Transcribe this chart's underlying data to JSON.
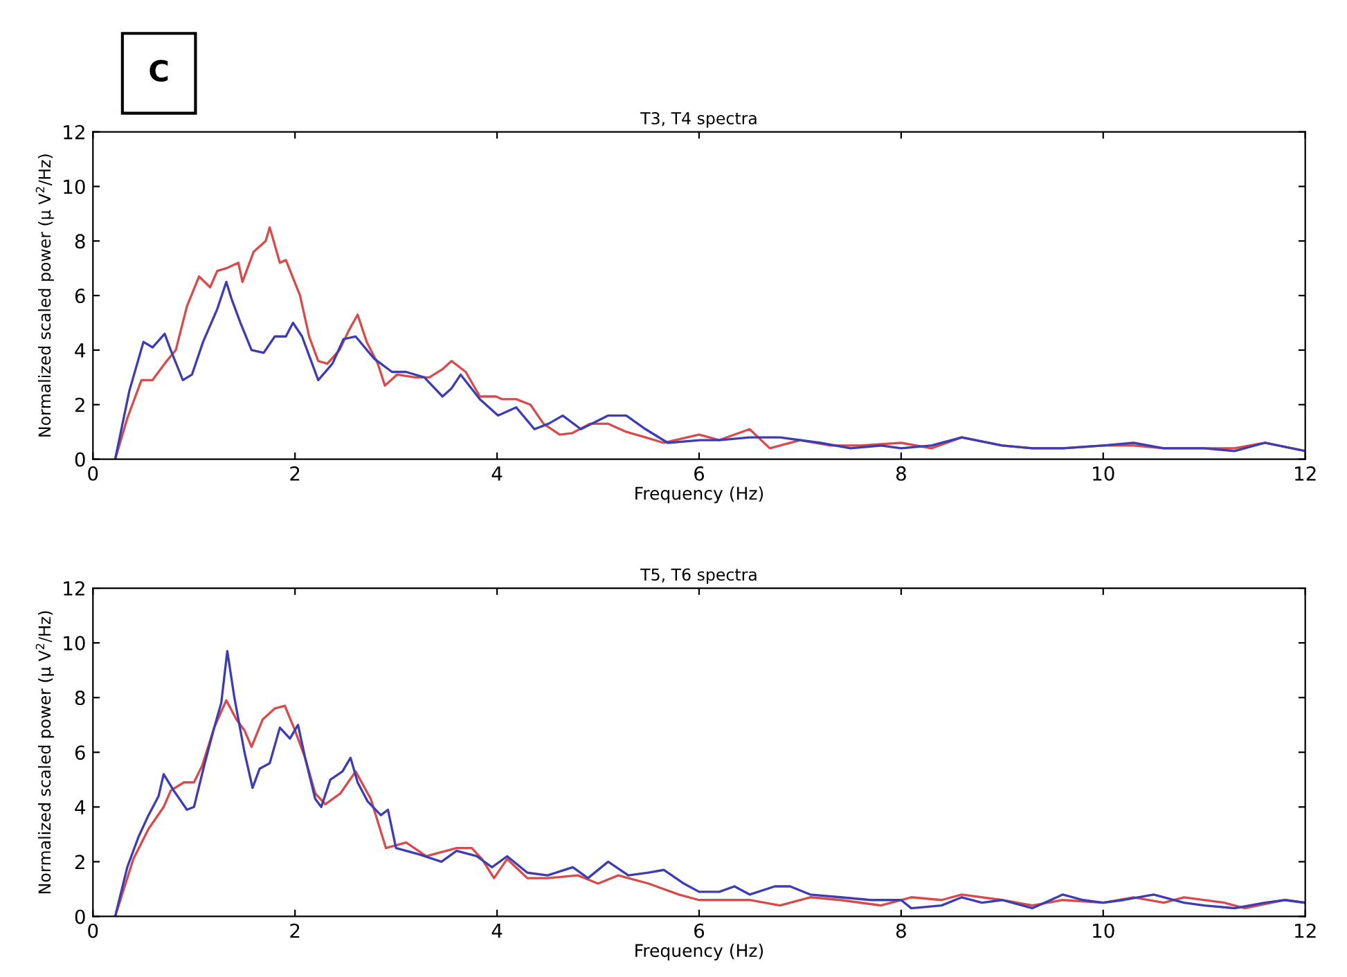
{
  "chart_data": [
    {
      "type": "line",
      "title": "T3, T4 spectra",
      "xlabel": "Frequency (Hz)",
      "ylabel": "Normalized scaled power (μ V$^{2}$/Hz)",
      "annotations": [
        "C"
      ],
      "xlim": [
        0,
        12
      ],
      "ylim": [
        0,
        12
      ],
      "xticks": [
        0,
        2,
        4,
        6,
        8,
        10,
        12
      ],
      "yticks": [
        0,
        2,
        4,
        6,
        8,
        10,
        12
      ],
      "grid": false,
      "legend": false,
      "marker": "none",
      "line_style": "solid",
      "series": [
        {
          "color": "#d94a4a",
          "x": [
            0.22,
            0.34,
            0.48,
            0.59,
            0.73,
            0.82,
            0.93,
            1.05,
            1.16,
            1.23,
            1.32,
            1.44,
            1.48,
            1.59,
            1.71,
            1.75,
            1.85,
            1.91,
            2.05,
            2.14,
            2.23,
            2.32,
            2.44,
            2.53,
            2.62,
            2.71,
            2.82,
            2.89,
            3.01,
            3.19,
            3.33,
            3.46,
            3.55,
            3.69,
            3.83,
            3.99,
            4.05,
            4.19,
            4.33,
            4.46,
            4.62,
            4.74,
            4.92,
            5.1,
            5.28,
            5.47,
            5.65,
            6.0,
            6.2,
            6.5,
            6.7,
            7.0,
            7.3,
            7.6,
            8.0,
            8.3,
            8.6,
            9.0,
            9.3,
            9.6,
            10.0,
            10.3,
            10.6,
            11.0,
            11.3,
            11.6,
            12.0
          ],
          "values": [
            0,
            1.5,
            2.9,
            2.9,
            3.6,
            4.0,
            5.6,
            6.7,
            6.3,
            6.9,
            7.0,
            7.2,
            6.5,
            7.6,
            8.0,
            8.5,
            7.2,
            7.3,
            6.0,
            4.5,
            3.6,
            3.5,
            4.0,
            4.7,
            5.3,
            4.3,
            3.5,
            2.7,
            3.1,
            3.0,
            3.0,
            3.3,
            3.6,
            3.2,
            2.3,
            2.3,
            2.2,
            2.2,
            2.0,
            1.3,
            0.9,
            0.95,
            1.3,
            1.3,
            1.0,
            0.8,
            0.6,
            0.9,
            0.7,
            1.1,
            0.4,
            0.7,
            0.5,
            0.5,
            0.6,
            0.4,
            0.8,
            0.5,
            0.4,
            0.4,
            0.5,
            0.5,
            0.4,
            0.4,
            0.4,
            0.6,
            0.3
          ]
        },
        {
          "color": "#3c3cb4",
          "x": [
            0.22,
            0.36,
            0.5,
            0.59,
            0.71,
            0.77,
            0.89,
            0.98,
            1.09,
            1.23,
            1.32,
            1.37,
            1.46,
            1.57,
            1.69,
            1.8,
            1.91,
            1.98,
            2.07,
            2.23,
            2.37,
            2.48,
            2.6,
            2.78,
            2.96,
            3.1,
            3.28,
            3.46,
            3.55,
            3.64,
            3.83,
            4.01,
            4.19,
            4.37,
            4.51,
            4.65,
            4.83,
            5.1,
            5.28,
            5.47,
            5.69,
            6.01,
            6.2,
            6.5,
            6.8,
            7.2,
            7.5,
            7.8,
            8.0,
            8.3,
            8.6,
            9.0,
            9.3,
            9.6,
            10.0,
            10.3,
            10.6,
            11.0,
            11.3,
            11.6,
            12.0
          ],
          "values": [
            0,
            2.5,
            4.3,
            4.1,
            4.6,
            4.0,
            2.9,
            3.1,
            4.3,
            5.5,
            6.5,
            5.9,
            5.0,
            4.0,
            3.9,
            4.5,
            4.5,
            5.0,
            4.5,
            2.9,
            3.5,
            4.4,
            4.5,
            3.7,
            3.2,
            3.2,
            3.0,
            2.3,
            2.6,
            3.1,
            2.2,
            1.6,
            1.9,
            1.1,
            1.3,
            1.6,
            1.1,
            1.6,
            1.6,
            1.1,
            0.6,
            0.7,
            0.7,
            0.8,
            0.8,
            0.6,
            0.4,
            0.5,
            0.4,
            0.5,
            0.8,
            0.5,
            0.4,
            0.4,
            0.5,
            0.6,
            0.4,
            0.4,
            0.3,
            0.6,
            0.3
          ]
        }
      ]
    },
    {
      "type": "line",
      "title": "T5, T6 spectra",
      "xlabel": "Frequency (Hz)",
      "ylabel": "Normalized scaled power (μ V$^{2}$/Hz)",
      "xlim": [
        0,
        12
      ],
      "ylim": [
        0,
        12
      ],
      "xticks": [
        0,
        2,
        4,
        6,
        8,
        10,
        12
      ],
      "yticks": [
        0,
        2,
        4,
        6,
        8,
        10,
        12
      ],
      "grid": false,
      "legend": false,
      "marker": "none",
      "line_style": "solid",
      "series": [
        {
          "color": "#d94a4a",
          "x": [
            0.22,
            0.4,
            0.55,
            0.7,
            0.77,
            0.9,
            1.0,
            1.08,
            1.2,
            1.32,
            1.42,
            1.5,
            1.57,
            1.68,
            1.8,
            1.9,
            2.0,
            2.1,
            2.2,
            2.3,
            2.45,
            2.6,
            2.75,
            2.9,
            3.0,
            3.1,
            3.3,
            3.6,
            3.75,
            3.85,
            3.97,
            4.1,
            4.3,
            4.5,
            4.8,
            5.0,
            5.2,
            5.5,
            5.8,
            6.0,
            6.2,
            6.5,
            6.8,
            7.1,
            7.4,
            7.8,
            8.1,
            8.4,
            8.6,
            9.0,
            9.3,
            9.6,
            10.0,
            10.3,
            10.6,
            10.8,
            11.2,
            11.4,
            11.8,
            12.0
          ],
          "values": [
            0,
            2.1,
            3.2,
            4.0,
            4.6,
            4.9,
            4.9,
            5.5,
            6.9,
            7.9,
            7.2,
            6.8,
            6.2,
            7.2,
            7.6,
            7.7,
            6.8,
            5.8,
            4.5,
            4.1,
            4.5,
            5.3,
            4.3,
            2.5,
            2.6,
            2.7,
            2.2,
            2.5,
            2.5,
            2.1,
            1.4,
            2.1,
            1.4,
            1.4,
            1.5,
            1.2,
            1.5,
            1.2,
            0.8,
            0.6,
            0.6,
            0.6,
            0.4,
            0.7,
            0.6,
            0.4,
            0.7,
            0.6,
            0.8,
            0.6,
            0.4,
            0.6,
            0.5,
            0.7,
            0.5,
            0.7,
            0.5,
            0.3,
            0.6,
            0.5
          ]
        },
        {
          "color": "#3c3cb4",
          "x": [
            0.22,
            0.34,
            0.45,
            0.55,
            0.65,
            0.7,
            0.8,
            0.93,
            1.0,
            1.1,
            1.2,
            1.27,
            1.33,
            1.4,
            1.5,
            1.58,
            1.65,
            1.75,
            1.85,
            1.95,
            2.03,
            2.1,
            2.2,
            2.26,
            2.35,
            2.47,
            2.55,
            2.62,
            2.72,
            2.85,
            2.92,
            3.0,
            3.2,
            3.45,
            3.6,
            3.8,
            3.95,
            4.1,
            4.3,
            4.5,
            4.75,
            4.9,
            5.1,
            5.3,
            5.5,
            5.65,
            5.85,
            6.0,
            6.2,
            6.35,
            6.5,
            6.75,
            6.9,
            7.1,
            7.4,
            7.7,
            8.0,
            8.1,
            8.4,
            8.6,
            8.8,
            9.0,
            9.3,
            9.6,
            9.8,
            10.0,
            10.2,
            10.5,
            10.8,
            11.0,
            11.3,
            11.6,
            11.8,
            12.0
          ],
          "values": [
            0,
            1.8,
            2.9,
            3.7,
            4.4,
            5.2,
            4.6,
            3.9,
            4.0,
            5.5,
            6.9,
            7.8,
            9.7,
            8.0,
            6.0,
            4.7,
            5.4,
            5.6,
            6.9,
            6.5,
            7.0,
            5.8,
            4.3,
            4.0,
            5.0,
            5.3,
            5.8,
            4.9,
            4.2,
            3.7,
            3.9,
            2.5,
            2.3,
            2.0,
            2.4,
            2.2,
            1.8,
            2.2,
            1.6,
            1.5,
            1.8,
            1.4,
            2.0,
            1.5,
            1.6,
            1.7,
            1.2,
            0.9,
            0.9,
            1.1,
            0.8,
            1.1,
            1.1,
            0.8,
            0.7,
            0.6,
            0.6,
            0.3,
            0.4,
            0.7,
            0.5,
            0.6,
            0.3,
            0.8,
            0.6,
            0.5,
            0.6,
            0.8,
            0.5,
            0.4,
            0.3,
            0.5,
            0.6,
            0.5
          ]
        }
      ]
    }
  ]
}
